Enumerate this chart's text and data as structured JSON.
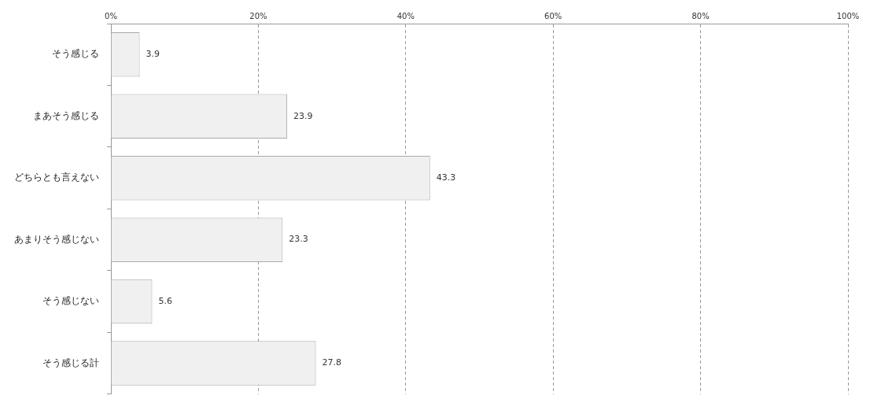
{
  "chart_data": {
    "type": "bar",
    "orientation": "horizontal",
    "categories": [
      "そう感じる",
      "まあそう感じる",
      "どちらとも言えない",
      "あまりそう感じない",
      "そう感じない",
      "そう感じる計"
    ],
    "values": [
      3.9,
      23.9,
      43.3,
      23.3,
      5.6,
      27.8
    ],
    "color": "#f0f0f0",
    "xlim": [
      0,
      100
    ],
    "xticks": [
      {
        "value": 0,
        "label": "0%"
      },
      {
        "value": 20,
        "label": "20%"
      },
      {
        "value": 40,
        "label": "40%"
      },
      {
        "value": 60,
        "label": "60%"
      },
      {
        "value": 80,
        "label": "80%"
      },
      {
        "value": 100,
        "label": "100%"
      }
    ],
    "grid": "x",
    "data_labels": true
  }
}
